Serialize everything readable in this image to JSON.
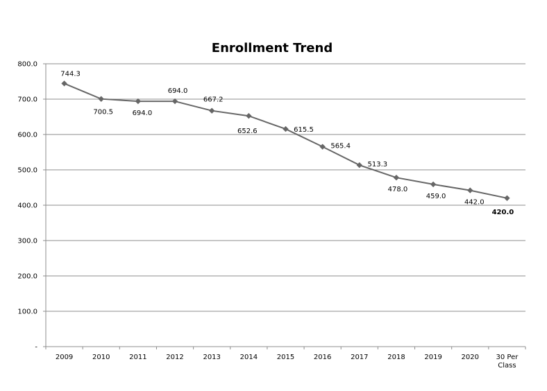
{
  "chart_data": {
    "type": "line",
    "title": "Enrollment Trend",
    "xlabel": "",
    "ylabel": "",
    "categories": [
      "2009",
      "2010",
      "2011",
      "2012",
      "2013",
      "2014",
      "2015",
      "2016",
      "2017",
      "2018",
      "2019",
      "2020",
      "30 Per Class"
    ],
    "series": [
      {
        "values": [
          744.3,
          700.5,
          694.0,
          694.0,
          667.2,
          652.6,
          615.5,
          565.4,
          513.3,
          478.0,
          459.0,
          442.0,
          420.0
        ],
        "labels": [
          "744.3",
          "700.5",
          "694.0",
          "694.0",
          "667.2",
          "652.6",
          "615.5",
          "565.4",
          "513.3",
          "478.0",
          "459.0",
          "442.0",
          "420.0"
        ]
      }
    ],
    "ylim": [
      0,
      800
    ],
    "yticks": [
      0,
      100,
      200,
      300,
      400,
      500,
      600,
      700,
      800
    ],
    "ytick_labels": [
      "-",
      "100.0",
      "200.0",
      "300.0",
      "400.0",
      "500.0",
      "600.0",
      "700.0",
      "800.0"
    ],
    "grid": true,
    "legend": "none",
    "colors": {
      "line": "#666666",
      "marker": "#666666",
      "grid": "#8c8c8c",
      "axis": "#8c8c8c"
    }
  }
}
